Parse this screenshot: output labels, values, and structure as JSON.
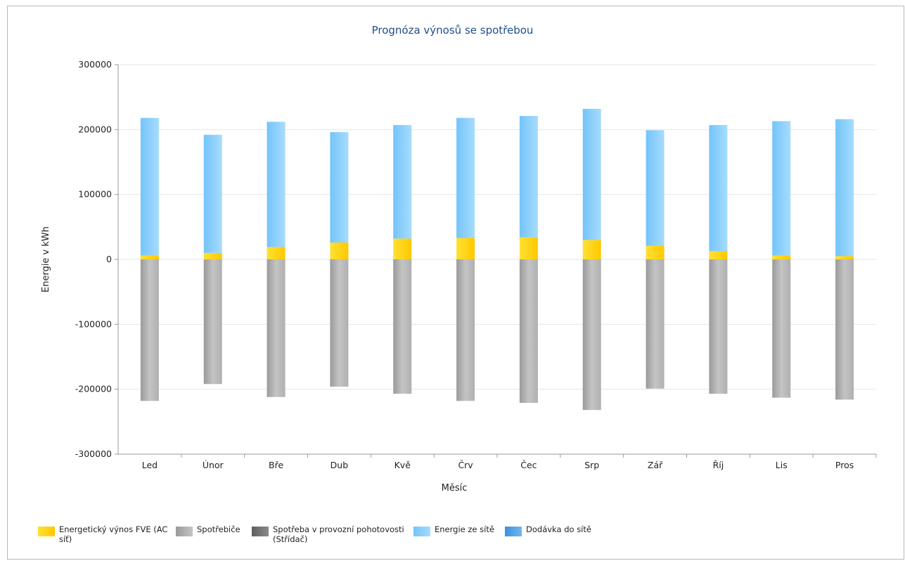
{
  "chart_data": {
    "type": "bar",
    "title": "Prognóza výnosů se spotřebou",
    "xlabel": "Měsíc",
    "ylabel": "Energie v kWh",
    "ylim": [
      -300000,
      300000
    ],
    "yticks": [
      300000,
      200000,
      100000,
      0,
      -100000,
      -200000,
      -300000
    ],
    "ytick_labels": [
      "300000",
      "200000",
      "100000",
      "0",
      "-100000",
      "-200000",
      "-300000"
    ],
    "stacked": true,
    "grid": true,
    "legend_position": "bottom-left",
    "categories": [
      "Led",
      "Únor",
      "Bře",
      "Dub",
      "Kvě",
      "Črv",
      "Čec",
      "Srp",
      "Zář",
      "Říj",
      "Lis",
      "Pros"
    ],
    "series": [
      {
        "name": "Energetický výnos FVE (AC síť)",
        "color": "#ffd200",
        "values": [
          6000,
          10000,
          19000,
          26000,
          32000,
          33000,
          34000,
          30000,
          21000,
          13000,
          6000,
          5000
        ]
      },
      {
        "name": "Spotřebiče",
        "color": "#b4b4b4",
        "values": [
          -218000,
          -192000,
          -212000,
          -196000,
          -207000,
          -218000,
          -221000,
          -232000,
          -199000,
          -207000,
          -213000,
          -216000
        ]
      },
      {
        "name": "Spotřeba v provozní pohotovosti (Střídač)",
        "color": "#7a7a7a",
        "values": [
          0,
          0,
          0,
          0,
          0,
          0,
          0,
          0,
          0,
          0,
          0,
          0
        ]
      },
      {
        "name": "Energie ze sítě",
        "color": "#8fd0fb",
        "values": [
          212000,
          182000,
          193000,
          170000,
          175000,
          185000,
          187000,
          202000,
          178000,
          194000,
          207000,
          211000
        ]
      },
      {
        "name": "Dodávka do sítě",
        "color": "#5aa6e8",
        "values": [
          0,
          0,
          0,
          0,
          0,
          0,
          0,
          0,
          0,
          0,
          0,
          0
        ]
      }
    ]
  }
}
